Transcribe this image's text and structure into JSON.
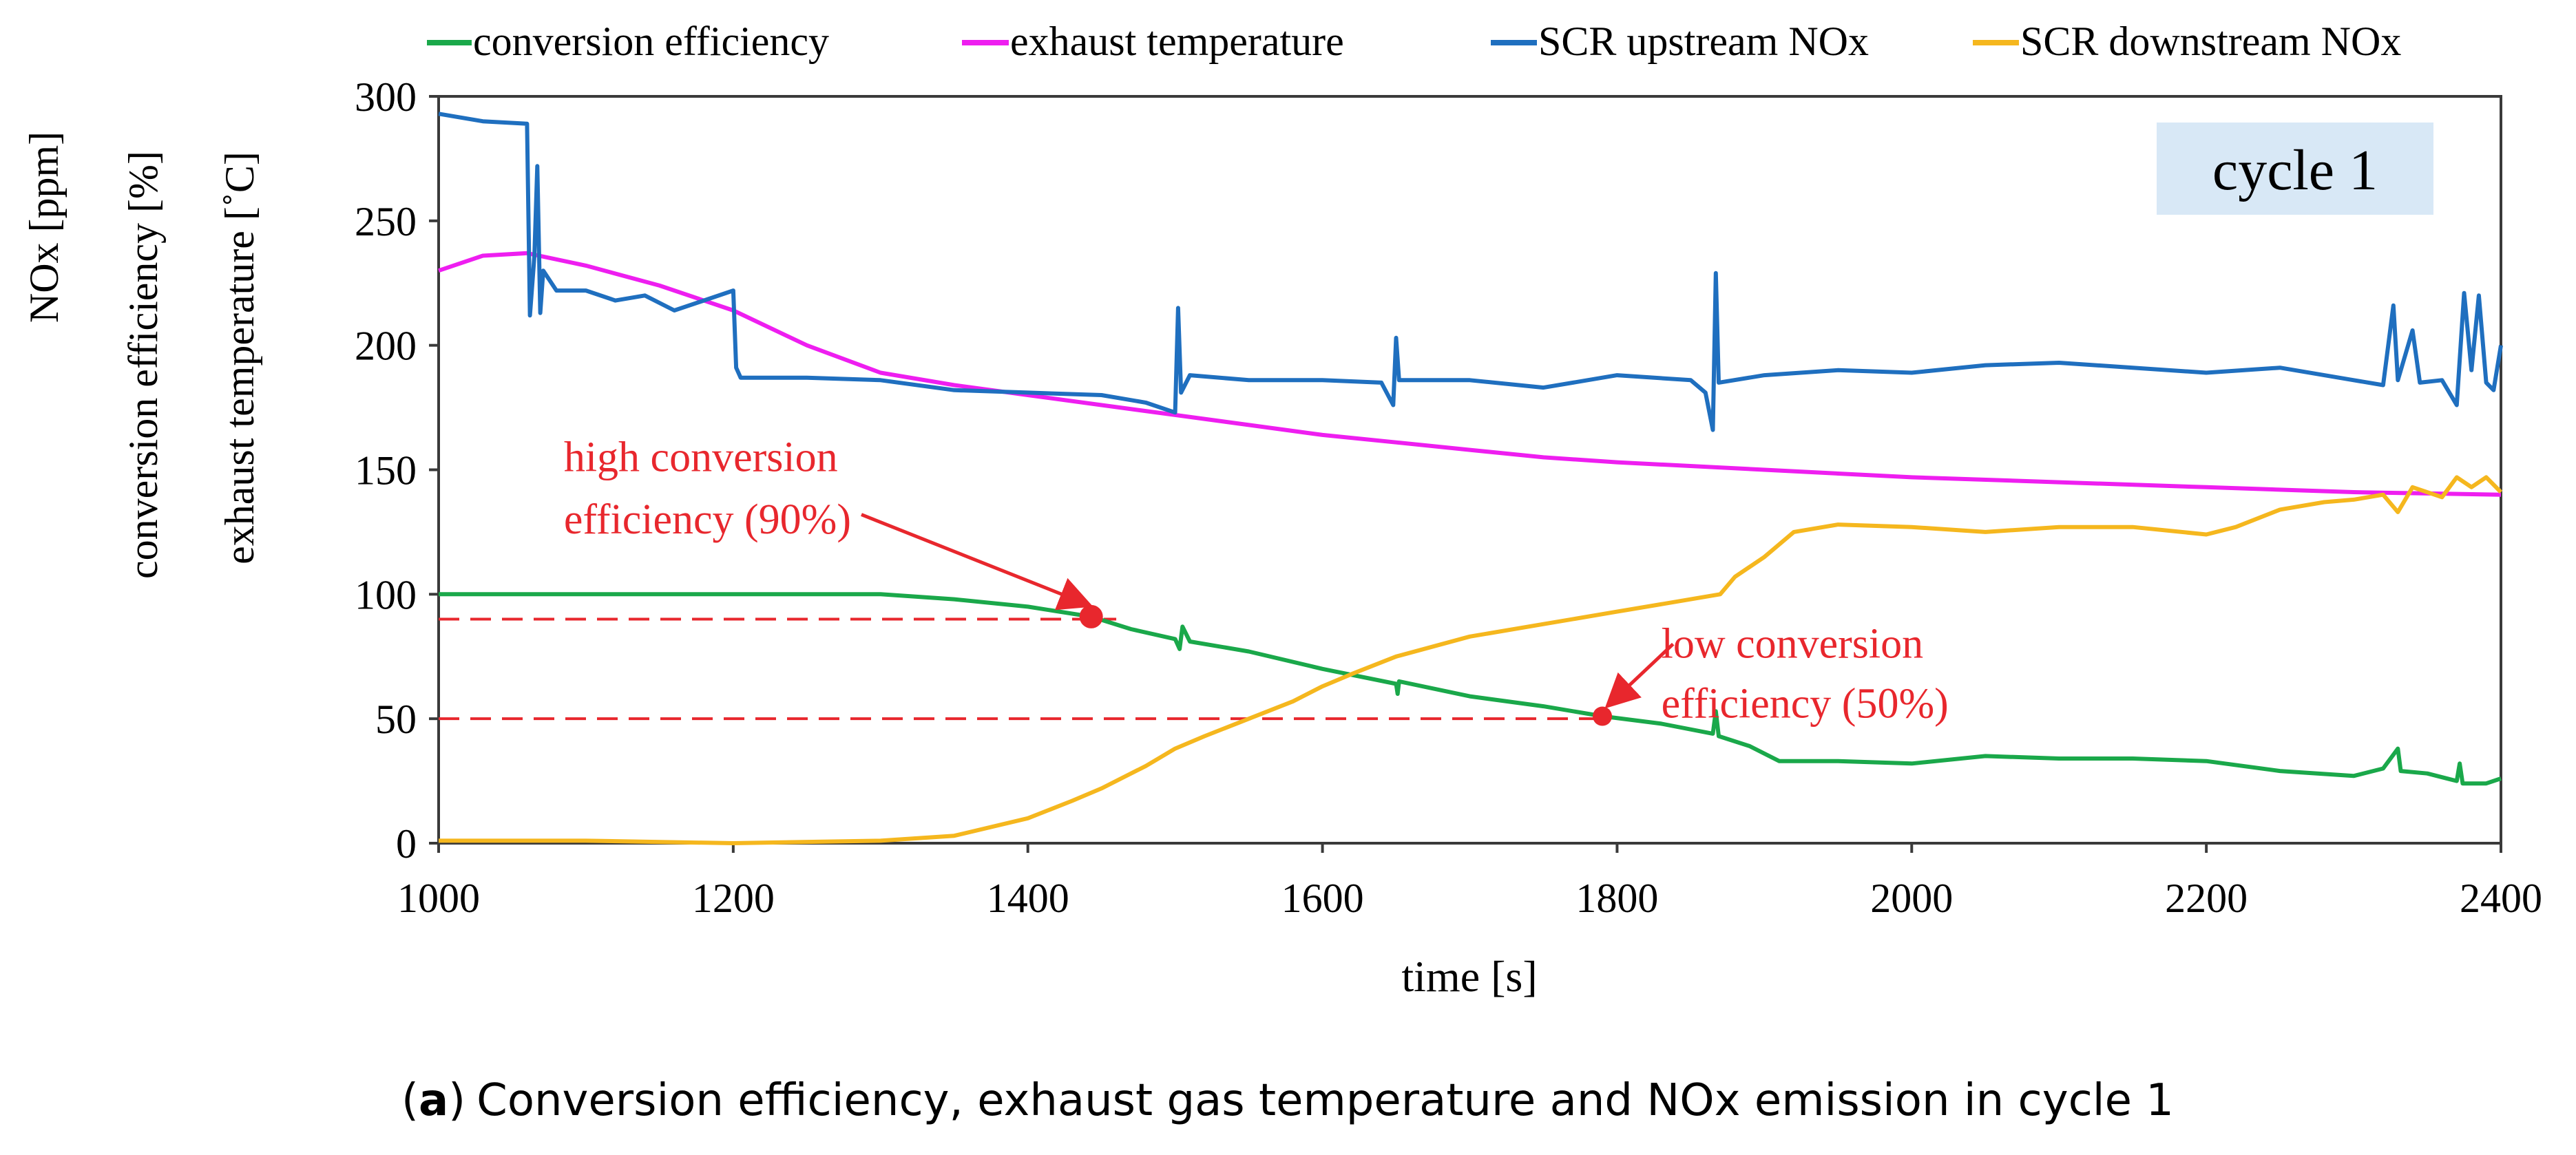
{
  "chart_data": {
    "type": "line",
    "title": "",
    "xlabel": "time [s]",
    "ylabel_lines": [
      "NOx [ppm]",
      "conversion efficiency [%]",
      "exhaust temperature [˚C]"
    ],
    "xlim": [
      1000,
      2400
    ],
    "ylim": [
      0,
      300
    ],
    "x_ticks": [
      1000,
      1200,
      1400,
      1600,
      1800,
      2000,
      2200,
      2400
    ],
    "y_ticks": [
      0,
      50,
      100,
      150,
      200,
      250,
      300
    ],
    "grid": false,
    "legend_position": "top",
    "cycle_label": "cycle 1",
    "caption_prefix": "a",
    "caption_text": "Conversion efficiency, exhaust gas temperature and NOx emission in cycle 1",
    "caption_open": "(",
    "caption_close": ")",
    "series": [
      {
        "name": "conversion efficiency",
        "color": "#1aa84a",
        "points": [
          [
            1000,
            100
          ],
          [
            1100,
            100
          ],
          [
            1200,
            100
          ],
          [
            1300,
            100
          ],
          [
            1350,
            98
          ],
          [
            1400,
            95
          ],
          [
            1443,
            91
          ],
          [
            1470,
            86
          ],
          [
            1500,
            82
          ],
          [
            1503,
            78
          ],
          [
            1505,
            87
          ],
          [
            1510,
            81
          ],
          [
            1550,
            77
          ],
          [
            1600,
            70
          ],
          [
            1650,
            64
          ],
          [
            1651,
            60
          ],
          [
            1652,
            65
          ],
          [
            1700,
            59
          ],
          [
            1750,
            55
          ],
          [
            1790,
            51
          ],
          [
            1830,
            48
          ],
          [
            1865,
            44
          ],
          [
            1867,
            53
          ],
          [
            1869,
            43
          ],
          [
            1890,
            39
          ],
          [
            1910,
            33
          ],
          [
            1950,
            33
          ],
          [
            2000,
            32
          ],
          [
            2050,
            35
          ],
          [
            2100,
            34
          ],
          [
            2150,
            34
          ],
          [
            2200,
            33
          ],
          [
            2250,
            29
          ],
          [
            2300,
            27
          ],
          [
            2320,
            30
          ],
          [
            2330,
            38
          ],
          [
            2332,
            29
          ],
          [
            2350,
            28
          ],
          [
            2370,
            25
          ],
          [
            2372,
            32
          ],
          [
            2374,
            24
          ],
          [
            2390,
            24
          ],
          [
            2400,
            26
          ]
        ]
      },
      {
        "name": "exhaust temperature",
        "color": "#ee1ef0",
        "points": [
          [
            1000,
            230
          ],
          [
            1030,
            236
          ],
          [
            1060,
            237
          ],
          [
            1100,
            232
          ],
          [
            1150,
            224
          ],
          [
            1200,
            214
          ],
          [
            1250,
            200
          ],
          [
            1300,
            189
          ],
          [
            1350,
            184
          ],
          [
            1400,
            180
          ],
          [
            1450,
            176
          ],
          [
            1500,
            172
          ],
          [
            1550,
            168
          ],
          [
            1600,
            164
          ],
          [
            1650,
            161
          ],
          [
            1700,
            158
          ],
          [
            1750,
            155
          ],
          [
            1800,
            153
          ],
          [
            1900,
            150
          ],
          [
            2000,
            147
          ],
          [
            2100,
            145
          ],
          [
            2200,
            143
          ],
          [
            2300,
            141
          ],
          [
            2400,
            140
          ]
        ]
      },
      {
        "name": "SCR upstream NOx",
        "color": "#1f6fbf",
        "points": [
          [
            1000,
            293
          ],
          [
            1030,
            290
          ],
          [
            1060,
            289
          ],
          [
            1062,
            212
          ],
          [
            1065,
            236
          ],
          [
            1067,
            272
          ],
          [
            1069,
            213
          ],
          [
            1071,
            230
          ],
          [
            1080,
            222
          ],
          [
            1100,
            222
          ],
          [
            1120,
            218
          ],
          [
            1140,
            220
          ],
          [
            1160,
            214
          ],
          [
            1180,
            218
          ],
          [
            1200,
            222
          ],
          [
            1202,
            191
          ],
          [
            1205,
            187
          ],
          [
            1250,
            187
          ],
          [
            1300,
            186
          ],
          [
            1350,
            182
          ],
          [
            1400,
            181
          ],
          [
            1450,
            180
          ],
          [
            1480,
            177
          ],
          [
            1500,
            173
          ],
          [
            1502,
            215
          ],
          [
            1504,
            181
          ],
          [
            1510,
            188
          ],
          [
            1550,
            186
          ],
          [
            1600,
            186
          ],
          [
            1640,
            185
          ],
          [
            1648,
            176
          ],
          [
            1650,
            203
          ],
          [
            1652,
            186
          ],
          [
            1700,
            186
          ],
          [
            1750,
            183
          ],
          [
            1800,
            188
          ],
          [
            1850,
            186
          ],
          [
            1860,
            181
          ],
          [
            1865,
            166
          ],
          [
            1867,
            229
          ],
          [
            1869,
            185
          ],
          [
            1900,
            188
          ],
          [
            1950,
            190
          ],
          [
            2000,
            189
          ],
          [
            2050,
            192
          ],
          [
            2100,
            193
          ],
          [
            2150,
            191
          ],
          [
            2200,
            189
          ],
          [
            2250,
            191
          ],
          [
            2300,
            186
          ],
          [
            2320,
            184
          ],
          [
            2327,
            216
          ],
          [
            2330,
            186
          ],
          [
            2340,
            206
          ],
          [
            2345,
            185
          ],
          [
            2360,
            186
          ],
          [
            2370,
            176
          ],
          [
            2375,
            221
          ],
          [
            2380,
            190
          ],
          [
            2385,
            220
          ],
          [
            2390,
            185
          ],
          [
            2395,
            182
          ],
          [
            2400,
            200
          ]
        ]
      },
      {
        "name": "SCR downstream NOx",
        "color": "#f5b71e",
        "points": [
          [
            1000,
            1
          ],
          [
            1100,
            1
          ],
          [
            1200,
            0
          ],
          [
            1300,
            1
          ],
          [
            1350,
            3
          ],
          [
            1400,
            10
          ],
          [
            1430,
            17
          ],
          [
            1450,
            22
          ],
          [
            1480,
            31
          ],
          [
            1500,
            38
          ],
          [
            1520,
            43
          ],
          [
            1550,
            50
          ],
          [
            1580,
            57
          ],
          [
            1600,
            63
          ],
          [
            1620,
            68
          ],
          [
            1650,
            75
          ],
          [
            1700,
            83
          ],
          [
            1750,
            88
          ],
          [
            1800,
            93
          ],
          [
            1850,
            98
          ],
          [
            1870,
            100
          ],
          [
            1880,
            107
          ],
          [
            1900,
            115
          ],
          [
            1920,
            125
          ],
          [
            1950,
            128
          ],
          [
            2000,
            127
          ],
          [
            2050,
            125
          ],
          [
            2100,
            127
          ],
          [
            2150,
            127
          ],
          [
            2200,
            124
          ],
          [
            2220,
            127
          ],
          [
            2250,
            134
          ],
          [
            2280,
            137
          ],
          [
            2300,
            138
          ],
          [
            2320,
            140
          ],
          [
            2330,
            133
          ],
          [
            2340,
            143
          ],
          [
            2360,
            139
          ],
          [
            2370,
            147
          ],
          [
            2380,
            143
          ],
          [
            2390,
            147
          ],
          [
            2400,
            141
          ]
        ]
      }
    ],
    "reference_lines": [
      {
        "y": 90,
        "x_start": 1000,
        "x_end": 1460,
        "color": "#e8272d"
      },
      {
        "y": 50,
        "x_start": 1000,
        "x_end": 1790,
        "color": "#e8272d"
      }
    ],
    "markers": [
      {
        "x": 1443,
        "y": 91,
        "color": "#e8272d",
        "size": "large"
      },
      {
        "x": 1790,
        "y": 51,
        "color": "#e8272d",
        "size": "small"
      }
    ],
    "annotations": [
      {
        "lines": [
          "high conversion",
          "efficiency (90%)"
        ],
        "color": "#e8272d",
        "anchor": "left",
        "text_x": 1085,
        "text_y_lines": [
          155,
          130
        ],
        "arrow_from": [
          1287,
          132
        ],
        "arrow_to": [
          1440,
          96
        ]
      },
      {
        "lines": [
          "low conversion",
          "efficiency (50%)"
        ],
        "color": "#e8272d",
        "anchor": "left",
        "text_x": 1830,
        "text_y_lines": [
          80,
          56
        ],
        "arrow_from": [
          1838,
          80
        ],
        "arrow_to": [
          1795,
          56
        ]
      }
    ]
  }
}
